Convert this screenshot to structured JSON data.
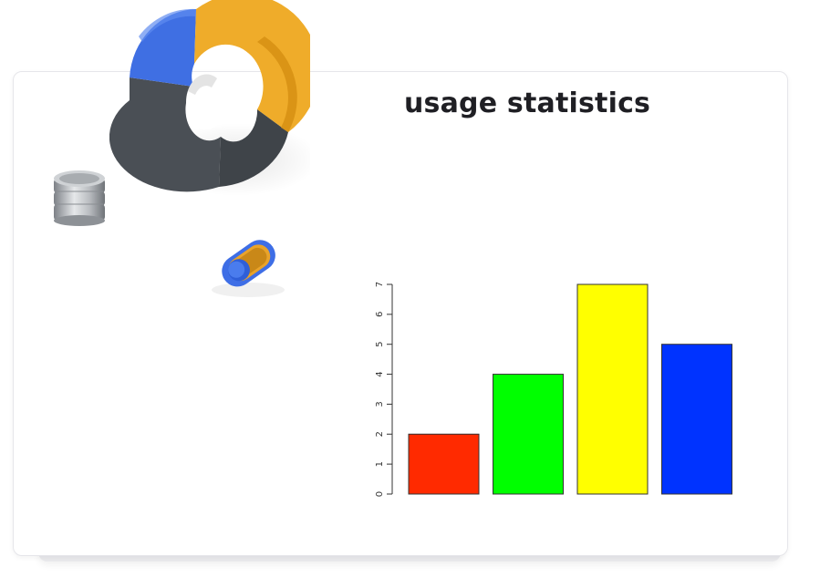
{
  "card": {
    "title": "usage statistics"
  },
  "decorations": {
    "donut_icon": "donut-chart-3d-icon",
    "coins_icon": "coin-stack-icon",
    "toggle_icon": "toggle-switch-icon"
  },
  "chart_data": {
    "type": "bar",
    "categories": [
      "",
      "",
      "",
      ""
    ],
    "values": [
      2,
      4,
      7,
      5
    ],
    "colors": [
      "#ff2a00",
      "#00ff00",
      "#ffff00",
      "#0033ff"
    ],
    "title": "",
    "xlabel": "",
    "ylabel": "",
    "ylim": [
      0,
      7
    ],
    "yticks": [
      0,
      1,
      2,
      3,
      4,
      5,
      6,
      7
    ],
    "grid": false,
    "legend": "none"
  }
}
